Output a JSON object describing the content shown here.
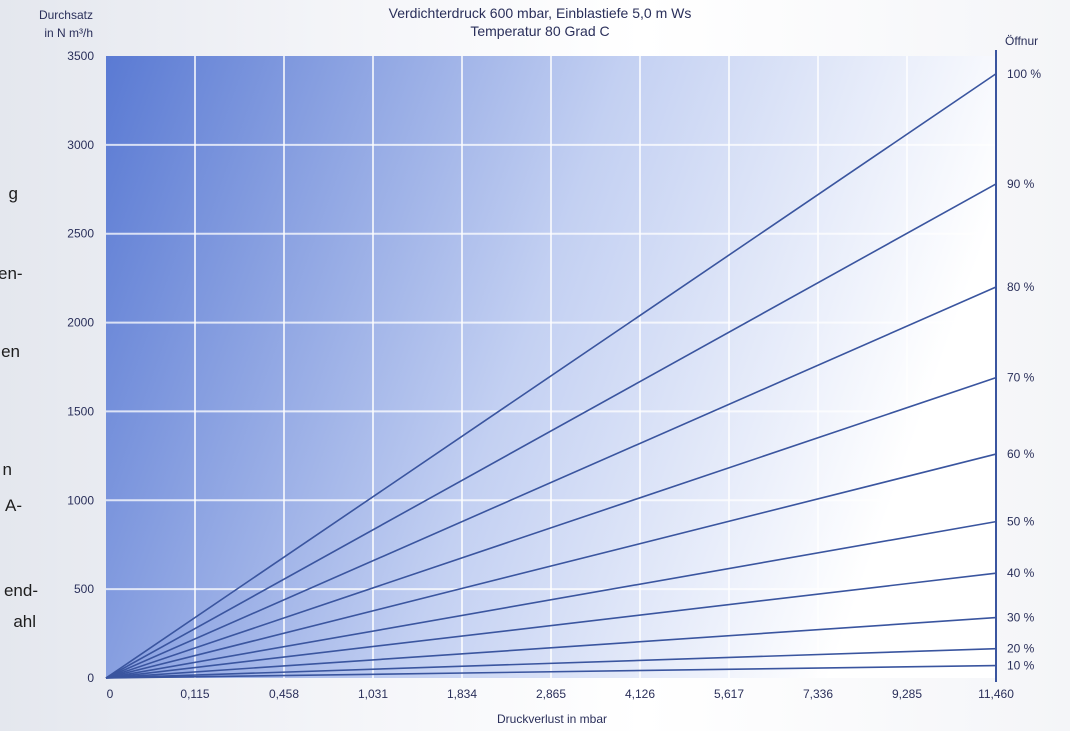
{
  "page": {
    "side_fragments": [
      "g",
      "en-",
      "en",
      "n",
      "A-",
      "end-",
      "ahl"
    ]
  },
  "chart_data": {
    "type": "line",
    "title": "Verdichterdruck 600 mbar, Einblastiefe 5,0 m Ws",
    "subtitle": "Temperatur 80 Grad C",
    "ylabel_line1": "Durchsatz",
    "ylabel_line2": "in N m³/h",
    "xlabel": "Druckverlust in mbar",
    "right_axis_label": "Öffnur",
    "x_ticks": [
      "0",
      "0,115",
      "0,458",
      "1,031",
      "1,834",
      "2,865",
      "4,126",
      "5,617",
      "7,336",
      "9,285",
      "11,460"
    ],
    "ylim": [
      0,
      3500
    ],
    "y_ticks": [
      0,
      500,
      1000,
      1500,
      2000,
      2500,
      3000,
      3500
    ],
    "grid": true,
    "x_end": "11,460",
    "series": [
      {
        "name": "100 %",
        "end_value": 3400
      },
      {
        "name": "90 %",
        "end_value": 2780
      },
      {
        "name": "80 %",
        "end_value": 2200
      },
      {
        "name": "70 %",
        "end_value": 1690
      },
      {
        "name": "60 %",
        "end_value": 1260
      },
      {
        "name": "50 %",
        "end_value": 880
      },
      {
        "name": "40 %",
        "end_value": 590
      },
      {
        "name": "30 %",
        "end_value": 340
      },
      {
        "name": "20 %",
        "end_value": 165
      },
      {
        "name": "10 %",
        "end_value": 70
      }
    ],
    "colors": {
      "plot_left": "#5a7ad3",
      "plot_right": "#ffffff",
      "line": "#3a559f",
      "grid": "#ffffff",
      "text": "#2a2f5a"
    }
  }
}
